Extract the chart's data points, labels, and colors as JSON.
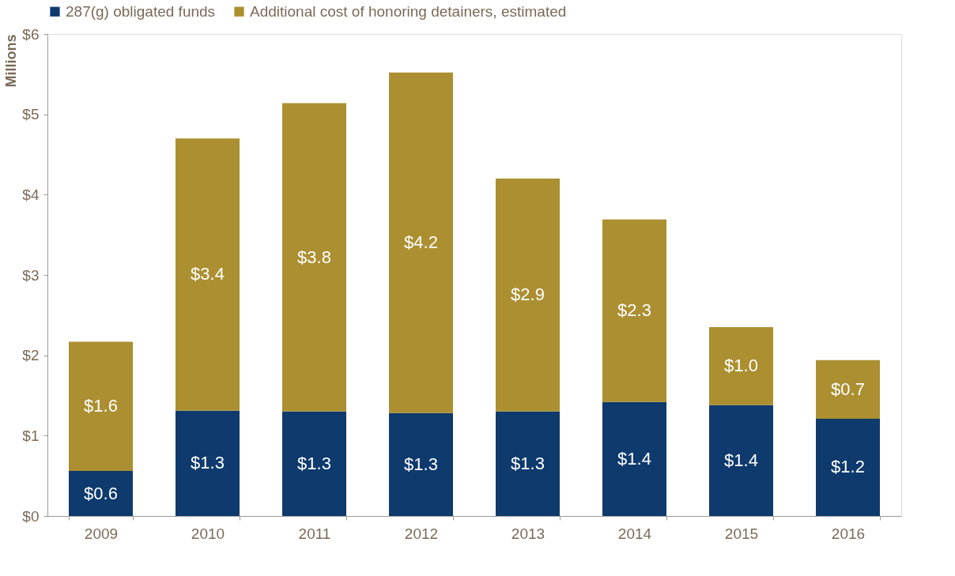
{
  "chart_data": {
    "type": "bar",
    "stacked": true,
    "ylabel": "Millions",
    "categories": [
      "2009",
      "2010",
      "2011",
      "2012",
      "2013",
      "2014",
      "2015",
      "2016"
    ],
    "series": [
      {
        "name": "287(g) obligated funds",
        "color": "#0e3a6d",
        "values": [
          0.56,
          1.31,
          1.3,
          1.28,
          1.3,
          1.42,
          1.38,
          1.21
        ],
        "value_labels": [
          "$0.6",
          "$1.3",
          "$1.3",
          "$1.3",
          "$1.3",
          "$1.4",
          "$1.4",
          "$1.2"
        ]
      },
      {
        "name": "Additional cost of honoring detainers, estimated",
        "color": "#ab8f31",
        "values": [
          1.61,
          3.39,
          3.84,
          4.24,
          2.9,
          2.27,
          0.97,
          0.73
        ],
        "value_labels": [
          "$1.6",
          "$3.4",
          "$3.8",
          "$4.2",
          "$2.9",
          "$2.3",
          "$1.0",
          "$0.7"
        ]
      }
    ],
    "ylim": [
      0,
      6
    ],
    "yticks": [
      {
        "value": 0,
        "label": "$0"
      },
      {
        "value": 1,
        "label": "$1"
      },
      {
        "value": 2,
        "label": "$2"
      },
      {
        "value": 3,
        "label": "$3"
      },
      {
        "value": 4,
        "label": "$4"
      },
      {
        "value": 5,
        "label": "$5"
      },
      {
        "value": 6,
        "label": "$6"
      }
    ],
    "legend": "top",
    "grid": false
  }
}
